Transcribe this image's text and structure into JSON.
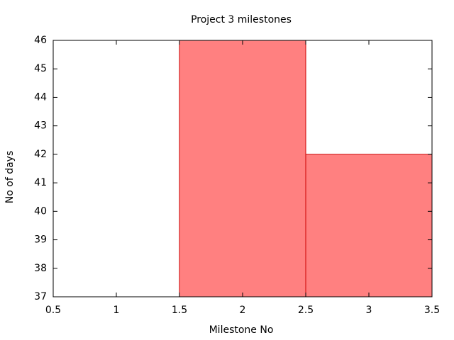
{
  "chart_data": {
    "type": "bar",
    "title": "Project 3 milestones",
    "x_label": "Milestone No",
    "y_label": "No of days",
    "x": [
      1,
      2,
      3
    ],
    "values": [
      37,
      46,
      42
    ],
    "color": "#ff8080",
    "edge_color": "#cc0000",
    "bar_width": 1,
    "xlim": [
      0.5,
      3.5
    ],
    "xticks": [
      0.5,
      1,
      1.5,
      2,
      2.5,
      3,
      3.5
    ],
    "ylim": [
      37,
      46
    ],
    "yticks": [
      37,
      38,
      39,
      40,
      41,
      42,
      43,
      44,
      45,
      46
    ]
  }
}
